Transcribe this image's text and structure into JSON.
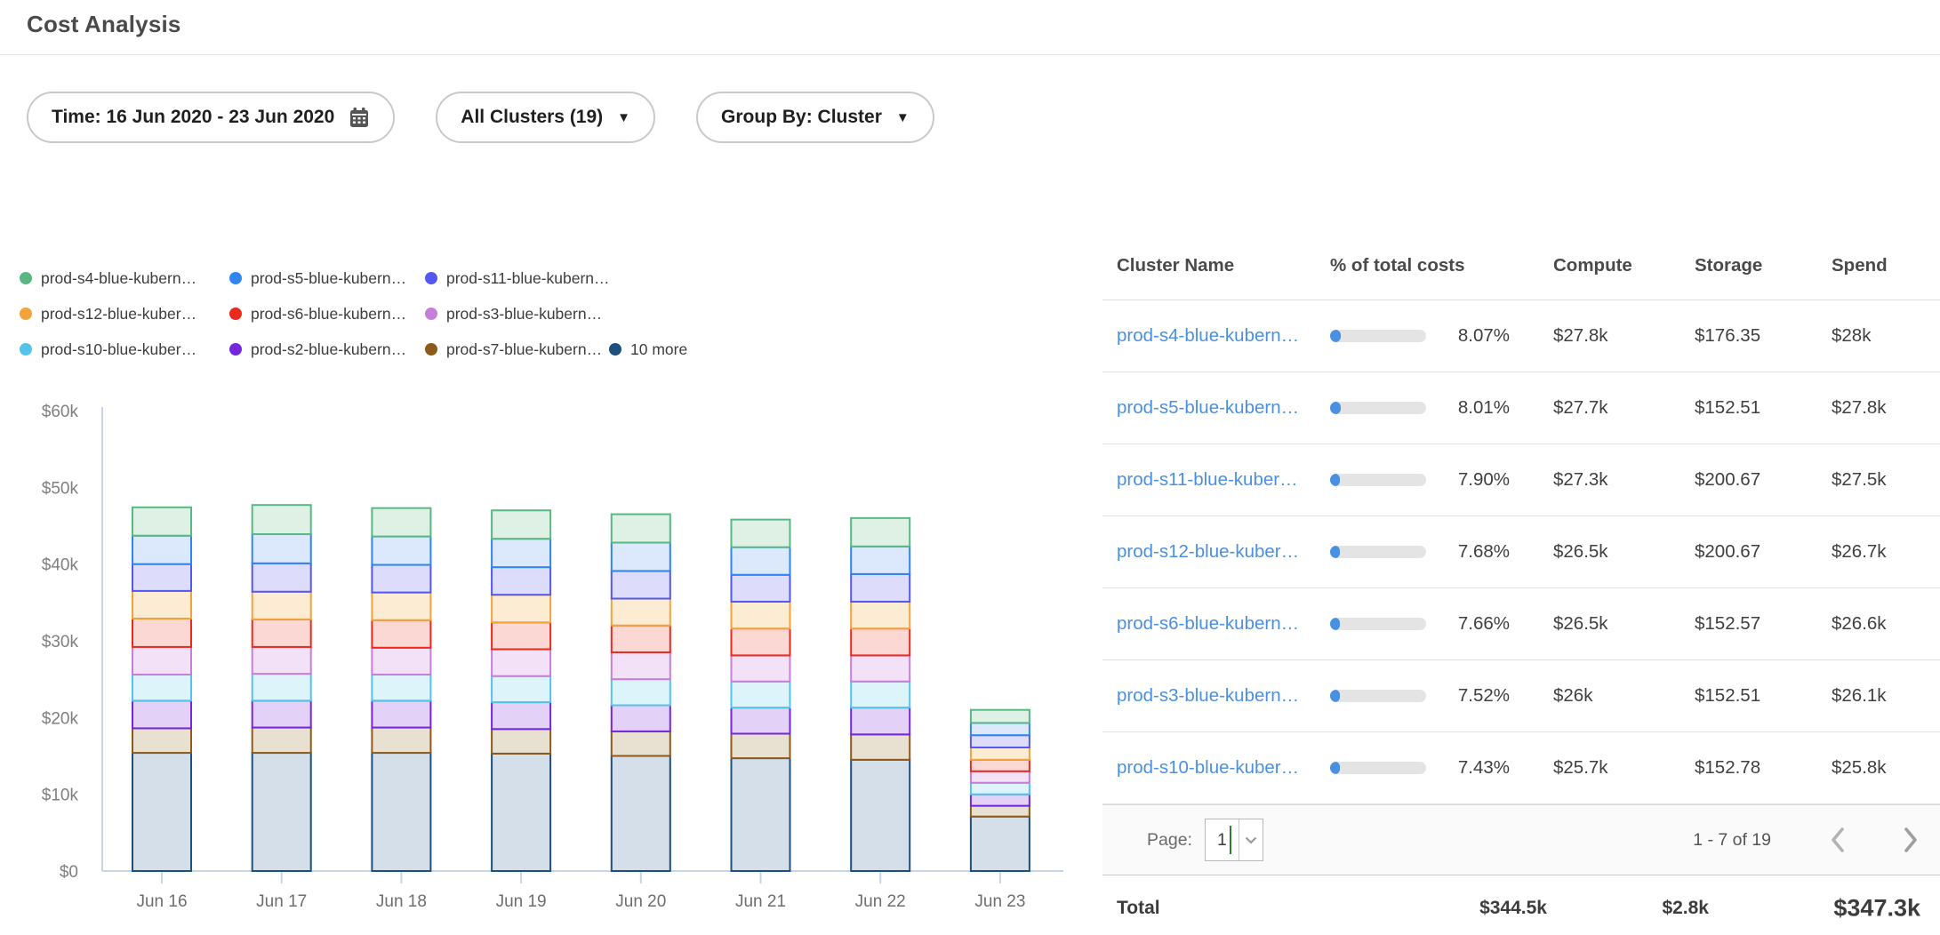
{
  "header": {
    "title": "Cost Analysis"
  },
  "filters": {
    "time_label": "Time: 16 Jun 2020 - 23 Jun 2020",
    "clusters_label": "All Clusters (19)",
    "group_by_label": "Group By: Cluster"
  },
  "chart_data": {
    "type": "bar",
    "stacked": true,
    "title": "",
    "xlabel": "",
    "ylabel": "",
    "categories": [
      "Jun 16",
      "Jun 17",
      "Jun 18",
      "Jun 19",
      "Jun 20",
      "Jun 21",
      "Jun 22",
      "Jun 23"
    ],
    "y_tick_labels": [
      "$0",
      "$10k",
      "$20k",
      "$30k",
      "$40k",
      "$50k",
      "$60k"
    ],
    "ylim_usd": [
      0,
      60000
    ],
    "value_unit": "USD thousands per day",
    "grid": false,
    "legend_position": "top",
    "series": [
      {
        "name": "prod-s4-blue-kubern…",
        "color": "#57b884",
        "fill": "#dff0e5",
        "values": [
          3.7,
          3.8,
          3.7,
          3.7,
          3.7,
          3.6,
          3.7,
          1.7
        ]
      },
      {
        "name": "prod-s5-blue-kubern…",
        "color": "#2f86f1",
        "fill": "#dce8fb",
        "values": [
          3.7,
          3.8,
          3.7,
          3.7,
          3.7,
          3.6,
          3.6,
          1.6
        ]
      },
      {
        "name": "prod-s11-blue-kubern…",
        "color": "#5458ef",
        "fill": "#dddcfa",
        "values": [
          3.5,
          3.7,
          3.6,
          3.6,
          3.6,
          3.5,
          3.6,
          1.6
        ]
      },
      {
        "name": "prod-s12-blue-kuber…",
        "color": "#f2a33c",
        "fill": "#fcecd4",
        "values": [
          3.6,
          3.6,
          3.6,
          3.6,
          3.5,
          3.5,
          3.5,
          1.6
        ]
      },
      {
        "name": "prod-s6-blue-kubern…",
        "color": "#eb2a1e",
        "fill": "#fbd8d4",
        "values": [
          3.7,
          3.6,
          3.6,
          3.5,
          3.5,
          3.5,
          3.5,
          1.5
        ]
      },
      {
        "name": "prod-s3-blue-kubern…",
        "color": "#c67fd9",
        "fill": "#f3e1f7",
        "values": [
          3.6,
          3.5,
          3.5,
          3.5,
          3.5,
          3.4,
          3.4,
          1.5
        ]
      },
      {
        "name": "prod-s10-blue-kuber…",
        "color": "#54c3eb",
        "fill": "#def4fb",
        "values": [
          3.4,
          3.5,
          3.4,
          3.4,
          3.4,
          3.4,
          3.4,
          1.5
        ]
      },
      {
        "name": "prod-s2-blue-kubern…",
        "color": "#7527dd",
        "fill": "#e3d1f8",
        "values": [
          3.6,
          3.5,
          3.5,
          3.5,
          3.4,
          3.4,
          3.5,
          1.5
        ]
      },
      {
        "name": "prod-s7-blue-kubern…",
        "color": "#8e5a1c",
        "fill": "#e8e0d1",
        "values": [
          3.2,
          3.3,
          3.3,
          3.2,
          3.2,
          3.2,
          3.3,
          1.4
        ]
      },
      {
        "name": "10 more",
        "color": "#1d507e",
        "fill": "#d4dfe9",
        "values": [
          15.4,
          15.4,
          15.4,
          15.3,
          15.0,
          14.7,
          14.5,
          7.1
        ]
      }
    ],
    "note": "stacking order bottom-to-top is the reverse of the series list; first series renders at the top of each bar"
  },
  "table": {
    "columns": [
      "Cluster Name",
      "% of total costs",
      "Compute",
      "Storage",
      "Spend"
    ],
    "rows": [
      {
        "name": "prod-s4-blue-kubern…",
        "pct": "8.07%",
        "pct_value": 8.07,
        "compute": "$27.8k",
        "storage": "$176.35",
        "spend": "$28k"
      },
      {
        "name": "prod-s5-blue-kubern…",
        "pct": "8.01%",
        "pct_value": 8.01,
        "compute": "$27.7k",
        "storage": "$152.51",
        "spend": "$27.8k"
      },
      {
        "name": "prod-s11-blue-kuber…",
        "pct": "7.90%",
        "pct_value": 7.9,
        "compute": "$27.3k",
        "storage": "$200.67",
        "spend": "$27.5k"
      },
      {
        "name": "prod-s12-blue-kuber…",
        "pct": "7.68%",
        "pct_value": 7.68,
        "compute": "$26.5k",
        "storage": "$200.67",
        "spend": "$26.7k"
      },
      {
        "name": "prod-s6-blue-kubern…",
        "pct": "7.66%",
        "pct_value": 7.66,
        "compute": "$26.5k",
        "storage": "$152.57",
        "spend": "$26.6k"
      },
      {
        "name": "prod-s3-blue-kubern…",
        "pct": "7.52%",
        "pct_value": 7.52,
        "compute": "$26k",
        "storage": "$152.51",
        "spend": "$26.1k"
      },
      {
        "name": "prod-s10-blue-kuber…",
        "pct": "7.43%",
        "pct_value": 7.43,
        "compute": "$25.7k",
        "storage": "$152.78",
        "spend": "$25.8k"
      }
    ],
    "pagination": {
      "page_label": "Page:",
      "page": "1",
      "range": "1 - 7 of 19"
    },
    "total": {
      "label": "Total",
      "compute": "$344.5k",
      "storage": "$2.8k",
      "spend": "$347.3k"
    }
  },
  "colors": {
    "link": "#4a90e2",
    "progress_track": "#e4e4e4",
    "progress_fill": "#4a90e2",
    "axis": "#c9d4e6",
    "axis_text": "#7f7f7f",
    "divider": "#e2e2e2",
    "select_caret": "#2e7d32",
    "chevron": "#a5a5a5"
  }
}
